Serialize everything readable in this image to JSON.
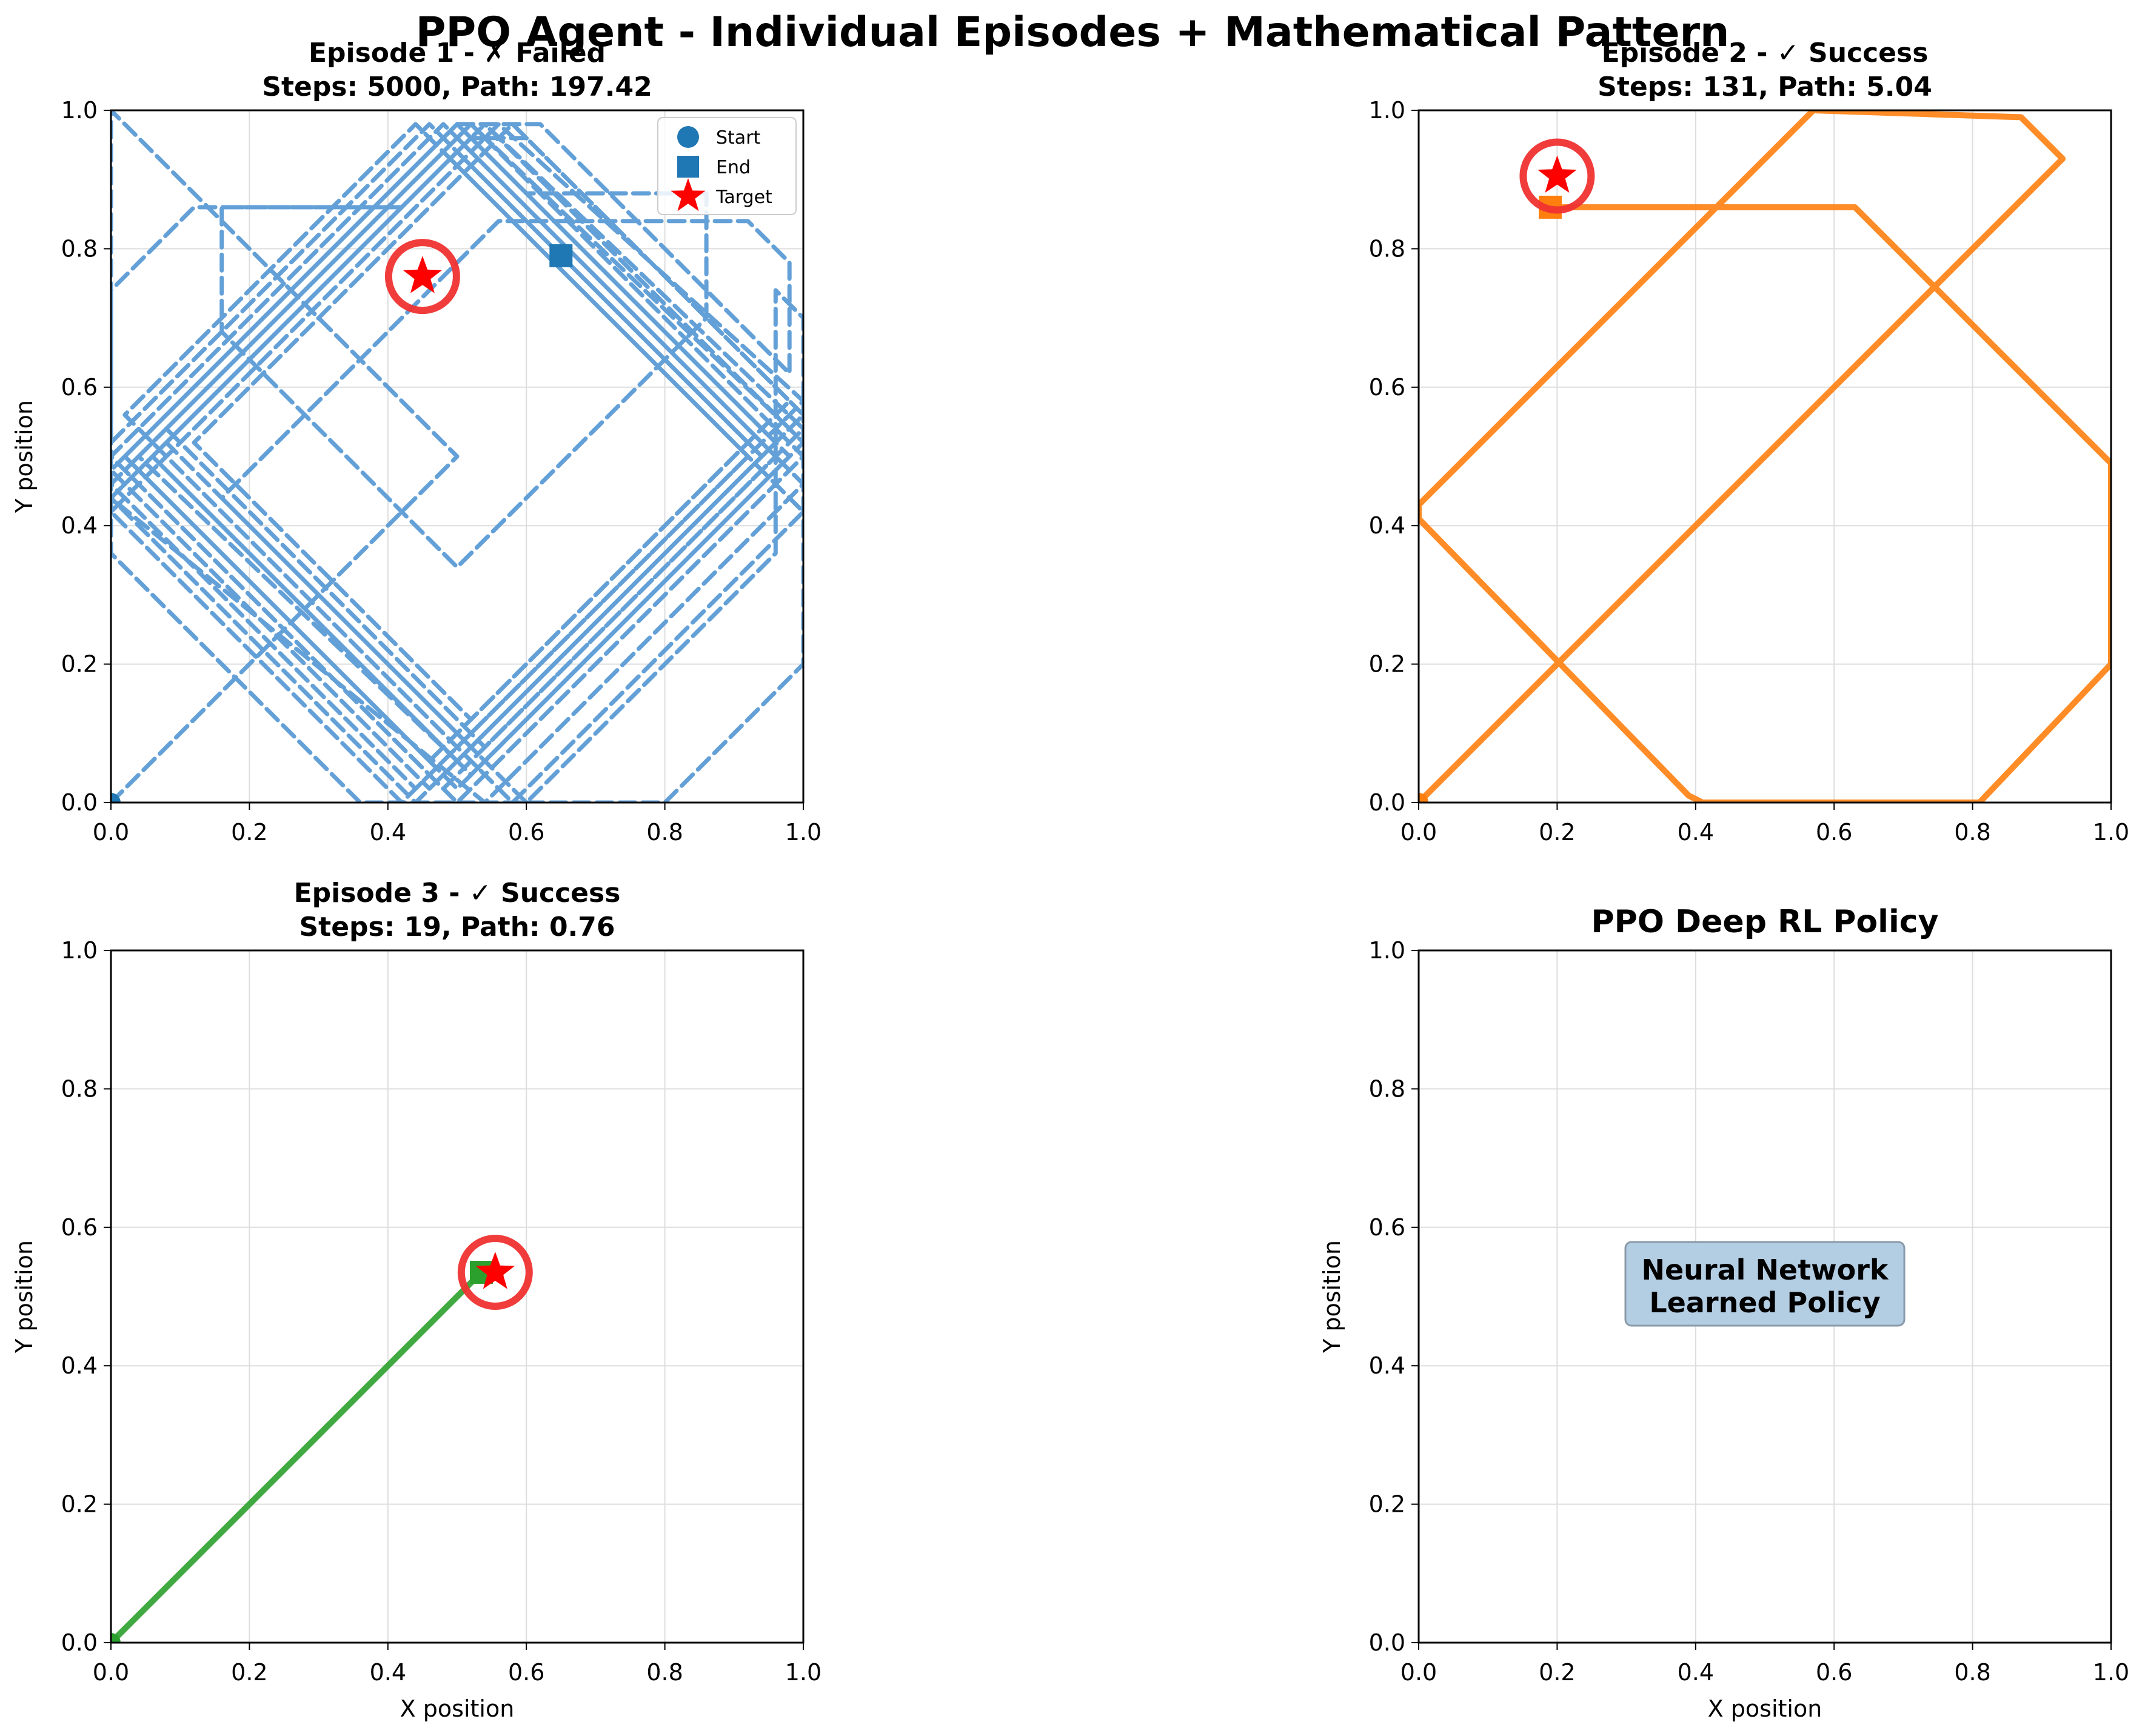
{
  "figure": {
    "title": "PPO Agent - Individual Episodes + Mathematical Pattern"
  },
  "chart_data": [
    {
      "type": "line",
      "title": "Episode 1 - ✗ Failed\nSteps: 5000, Path: 197.42",
      "xlabel": "",
      "ylabel": "Y position",
      "xlim": [
        0,
        1
      ],
      "ylim": [
        0,
        1
      ],
      "xticks": [
        "0.0",
        "0.2",
        "0.4",
        "0.6",
        "0.8",
        "1.0"
      ],
      "yticks": [
        "0.0",
        "0.2",
        "0.4",
        "0.6",
        "0.8",
        "1.0"
      ],
      "grid": true,
      "legend": {
        "position": "top-right",
        "entries": [
          {
            "label": "Start",
            "marker": "circle"
          },
          {
            "label": "End",
            "marker": "square"
          },
          {
            "label": "Target",
            "marker": "star"
          }
        ]
      },
      "color": "#1f77b4",
      "path_color": "#5b9bd5",
      "line_style": "dashed",
      "start": [
        0.0,
        0.0
      ],
      "end": [
        0.65,
        0.79
      ],
      "target": [
        0.45,
        0.76
      ],
      "path": [
        [
          0.0,
          0.0
        ],
        [
          0.5,
          0.5
        ],
        [
          0.0,
          1.0
        ],
        [
          0.0,
          0.52
        ],
        [
          0.46,
          0.98
        ],
        [
          0.94,
          0.5
        ],
        [
          0.46,
          0.02
        ],
        [
          0.0,
          0.48
        ],
        [
          0.5,
          0.98
        ],
        [
          0.98,
          0.5
        ],
        [
          0.5,
          0.02
        ],
        [
          0.04,
          0.48
        ],
        [
          0.54,
          0.98
        ],
        [
          1.0,
          0.52
        ],
        [
          0.52,
          0.04
        ],
        [
          0.06,
          0.5
        ],
        [
          0.54,
          0.98
        ],
        [
          1.0,
          0.54
        ],
        [
          0.54,
          0.08
        ],
        [
          0.08,
          0.54
        ],
        [
          0.52,
          0.98
        ],
        [
          0.98,
          0.54
        ],
        [
          0.5,
          0.06
        ],
        [
          0.04,
          0.5
        ],
        [
          0.5,
          0.96
        ],
        [
          0.96,
          0.5
        ],
        [
          0.48,
          0.02
        ],
        [
          0.02,
          0.48
        ],
        [
          0.48,
          0.94
        ],
        [
          1.0,
          0.42
        ],
        [
          0.58,
          0.0
        ],
        [
          0.02,
          0.56
        ],
        [
          0.44,
          0.98
        ],
        [
          0.92,
          0.5
        ],
        [
          0.42,
          0.0
        ],
        [
          0.0,
          0.42
        ],
        [
          0.56,
          0.98
        ],
        [
          1.0,
          0.58
        ],
        [
          0.44,
          0.02
        ],
        [
          0.0,
          0.46
        ],
        [
          0.52,
          0.98
        ],
        [
          1.0,
          0.5
        ],
        [
          0.5,
          0.0
        ],
        [
          0.0,
          0.5
        ],
        [
          0.48,
          0.98
        ],
        [
          1.0,
          0.46
        ],
        [
          0.54,
          0.0
        ],
        [
          0.0,
          0.44
        ],
        [
          0.42,
          0.86
        ],
        [
          0.12,
          0.86
        ],
        [
          0.0,
          0.74
        ],
        [
          0.0,
          0.36
        ],
        [
          0.36,
          0.0
        ],
        [
          0.8,
          0.0
        ],
        [
          1.0,
          0.2
        ],
        [
          1.0,
          0.7
        ],
        [
          0.96,
          0.74
        ],
        [
          0.96,
          0.36
        ],
        [
          0.6,
          0.0
        ],
        [
          0.16,
          0.44
        ],
        [
          0.56,
          0.84
        ],
        [
          0.92,
          0.84
        ],
        [
          0.98,
          0.78
        ],
        [
          0.98,
          0.62
        ],
        [
          0.62,
          0.98
        ],
        [
          0.5,
          0.98
        ],
        [
          0.02,
          0.5
        ],
        [
          0.46,
          0.06
        ],
        [
          0.92,
          0.52
        ],
        [
          0.5,
          0.94
        ],
        [
          0.08,
          0.52
        ],
        [
          0.52,
          0.08
        ],
        [
          0.96,
          0.52
        ],
        [
          0.5,
          0.98
        ],
        [
          0.02,
          0.5
        ],
        [
          0.5,
          0.02
        ],
        [
          0.98,
          0.5
        ],
        [
          0.6,
          0.88
        ],
        [
          0.86,
          0.88
        ],
        [
          0.86,
          0.7
        ],
        [
          0.5,
          0.34
        ],
        [
          0.16,
          0.68
        ],
        [
          0.16,
          0.86
        ],
        [
          0.42,
          0.86
        ],
        [
          0.0,
          0.44
        ],
        [
          0.44,
          0.0
        ],
        [
          1.0,
          0.56
        ],
        [
          0.58,
          0.98
        ],
        [
          0.12,
          0.52
        ],
        [
          0.52,
          0.12
        ],
        [
          0.98,
          0.58
        ],
        [
          0.6,
          0.96
        ],
        [
          0.52,
          0.96
        ],
        [
          0.06,
          0.5
        ],
        [
          0.5,
          0.06
        ],
        [
          0.94,
          0.5
        ],
        [
          0.54,
          0.9
        ],
        [
          0.65,
          0.79
        ]
      ]
    },
    {
      "type": "line",
      "title": "Episode 2 - ✓ Success\nSteps: 131, Path: 5.04",
      "xlabel": "",
      "ylabel": "",
      "xlim": [
        0,
        1
      ],
      "ylim": [
        0,
        1
      ],
      "xticks": [
        "0.0",
        "0.2",
        "0.4",
        "0.6",
        "0.8",
        "1.0"
      ],
      "yticks": [
        "0.0",
        "0.2",
        "0.4",
        "0.6",
        "0.8",
        "1.0"
      ],
      "grid": true,
      "color": "#ff7f0e",
      "path_color": "#ff7f0e",
      "line_style": "solid",
      "start": [
        0.0,
        0.0
      ],
      "end": [
        0.19,
        0.86
      ],
      "target": [
        0.2,
        0.905
      ],
      "path": [
        [
          0.0,
          0.0
        ],
        [
          0.93,
          0.93
        ],
        [
          0.87,
          0.99
        ],
        [
          0.57,
          1.0
        ],
        [
          0.0,
          0.43
        ],
        [
          0.0,
          0.41
        ],
        [
          0.39,
          0.01
        ],
        [
          0.41,
          0.0
        ],
        [
          0.81,
          0.0
        ],
        [
          1.0,
          0.2
        ],
        [
          1.0,
          0.49
        ],
        [
          0.63,
          0.86
        ],
        [
          0.19,
          0.86
        ]
      ]
    },
    {
      "type": "line",
      "title": "Episode 3 - ✓ Success\nSteps: 19, Path: 0.76",
      "xlabel": "X position",
      "ylabel": "Y position",
      "xlim": [
        0,
        1
      ],
      "ylim": [
        0,
        1
      ],
      "xticks": [
        "0.0",
        "0.2",
        "0.4",
        "0.6",
        "0.8",
        "1.0"
      ],
      "yticks": [
        "0.0",
        "0.2",
        "0.4",
        "0.6",
        "0.8",
        "1.0"
      ],
      "grid": true,
      "color": "#2ca02c",
      "path_color": "#2ca02c",
      "line_style": "solid",
      "start": [
        0.0,
        0.0
      ],
      "end": [
        0.535,
        0.535
      ],
      "target": [
        0.555,
        0.535
      ],
      "path": [
        [
          0.0,
          0.0
        ],
        [
          0.535,
          0.535
        ]
      ]
    },
    {
      "type": "line",
      "title": "PPO Deep RL Policy",
      "xlabel": "X position",
      "ylabel": "Y position",
      "xlim": [
        0,
        1
      ],
      "ylim": [
        0,
        1
      ],
      "xticks": [
        "0.0",
        "0.2",
        "0.4",
        "0.6",
        "0.8",
        "1.0"
      ],
      "yticks": [
        "0.0",
        "0.2",
        "0.4",
        "0.6",
        "0.8",
        "1.0"
      ],
      "grid": true,
      "annotation": {
        "text": "Neural Network\nLearned Policy",
        "x": 0.5,
        "y": 0.5,
        "box_color": "#b3cde3"
      }
    }
  ]
}
